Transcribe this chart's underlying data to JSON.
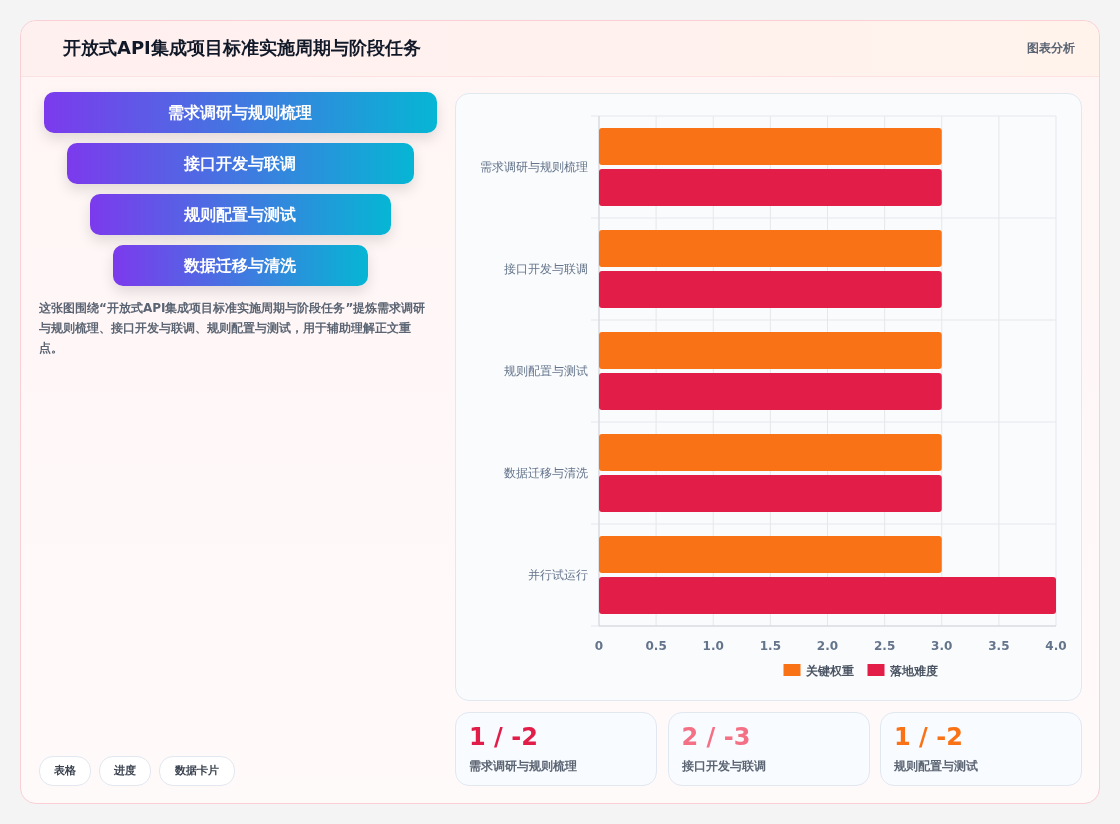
{
  "chart_data": [
    {
      "type": "other",
      "title": "开放式API集成项目标准实施周期与阶段任务",
      "annotations": [
        "图表分析",
        "需求调研与规则梳理",
        "接口开发与联调",
        "规则配置与测试",
        "数据迁移与清洗",
        "这张图围绕“开放式API集成项目标准实施周期与阶段任务”提炼需求调研与规则梳理、接口开发与联调、规则配置与测试，用于辅助理解正文重点。",
        "表格",
        "进度",
        "数据卡片"
      ]
    },
    {
      "type": "bar",
      "orientation": "horizontal",
      "categories": [
        "需求调研与规则梳理",
        "接口开发与联调",
        "规则配置与测试",
        "数据迁移与清洗",
        "并行试运行"
      ],
      "series": [
        {
          "name": "关键权重",
          "color": "#f97316",
          "values": [
            3,
            3,
            3,
            3,
            3
          ]
        },
        {
          "name": "落地难度",
          "color": "#e11d48",
          "values": [
            3,
            3,
            3,
            3,
            4
          ]
        }
      ],
      "xlim": [
        0,
        4
      ],
      "xticks": [
        0,
        {
          "value": 0.5,
          "label": "0.5"
        },
        {
          "value": 1,
          "label": "1.0"
        },
        {
          "value": 1.5,
          "label": "1.5"
        },
        {
          "value": 2,
          "label": "2.0"
        },
        {
          "value": 2.5,
          "label": "2.5"
        },
        {
          "value": 3,
          "label": "3.0"
        },
        {
          "value": 3.5,
          "label": "3.5"
        },
        {
          "value": 4,
          "label": "4.0"
        }
      ],
      "grid": true,
      "legend": "bottom"
    },
    {
      "type": "other",
      "annotations": [
        "1 / -2",
        "需求调研与规则梳理",
        "2 / -3",
        "接口开发与联调",
        "1 / -2",
        "规则配置与测试"
      ]
    }
  ]
}
